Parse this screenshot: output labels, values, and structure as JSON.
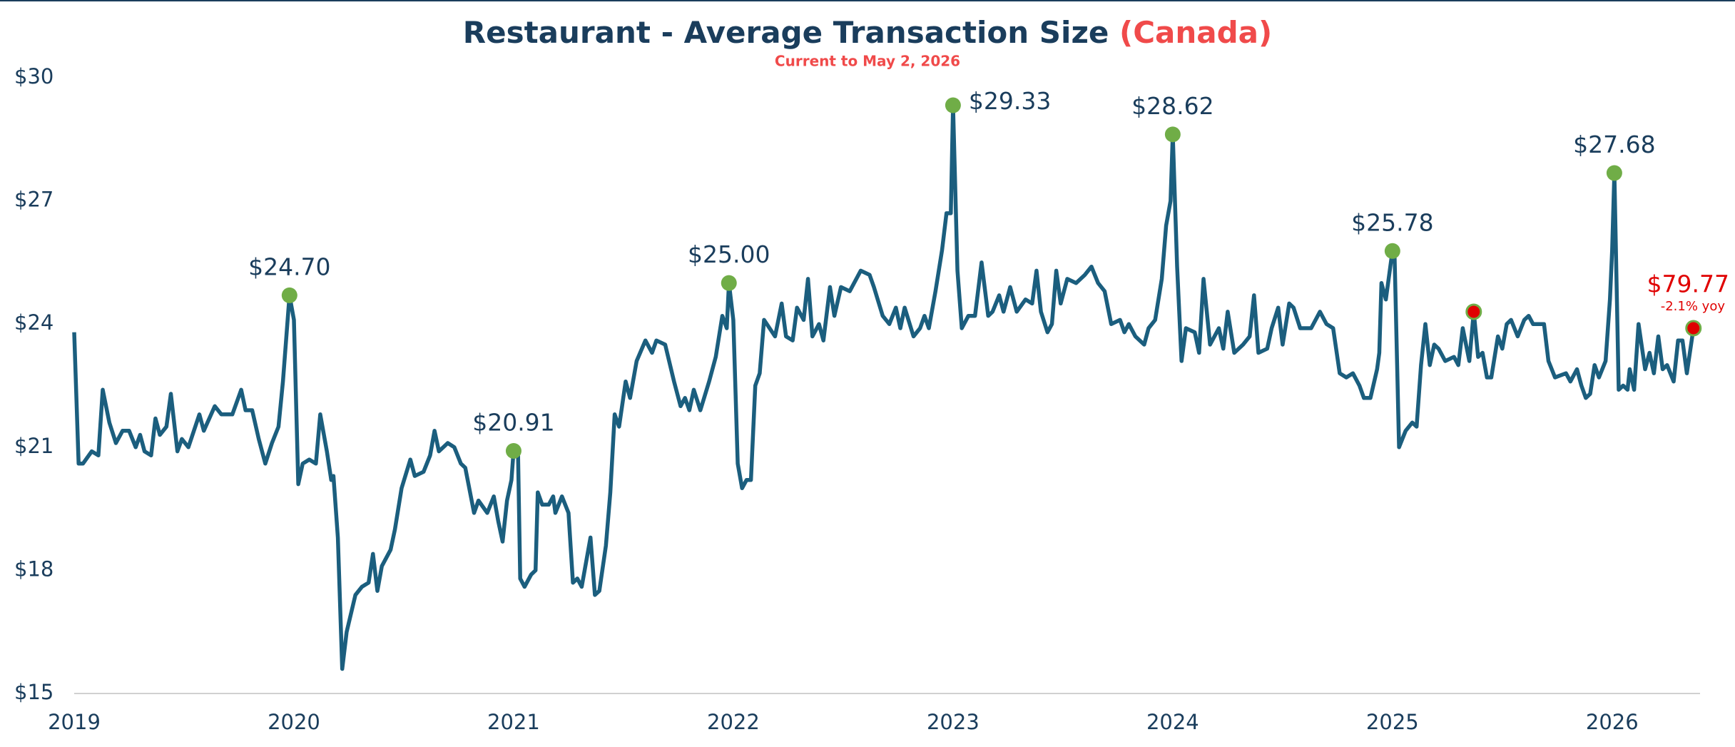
{
  "chart_data": {
    "type": "line",
    "title": "Restaurant - Average Transaction Size",
    "title_highlight": "(Canada)",
    "subtitle": "Current to May 2, 2026",
    "x": [
      2019.0,
      2019.02,
      2019.04,
      2019.08,
      2019.11,
      2019.13,
      2019.16,
      2019.19,
      2019.22,
      2019.25,
      2019.28,
      2019.3,
      2019.32,
      2019.35,
      2019.37,
      2019.39,
      2019.42,
      2019.44,
      2019.47,
      2019.49,
      2019.52,
      2019.57,
      2019.59,
      2019.64,
      2019.67,
      2019.72,
      2019.76,
      2019.78,
      2019.81,
      2019.84,
      2019.87,
      2019.9,
      2019.93,
      2019.95,
      2019.98,
      2020.0,
      2020.02,
      2020.04,
      2020.07,
      2020.1,
      2020.12,
      2020.15,
      2020.17,
      2020.18,
      2020.2,
      2020.22,
      2020.24,
      2020.28,
      2020.31,
      2020.34,
      2020.36,
      2020.38,
      2020.4,
      2020.44,
      2020.46,
      2020.49,
      2020.53,
      2020.55,
      2020.59,
      2020.62,
      2020.64,
      2020.66,
      2020.7,
      2020.73,
      2020.76,
      2020.78,
      2020.82,
      2020.84,
      2020.88,
      2020.91,
      2020.93,
      2020.95,
      2020.97,
      2020.99,
      2021.0,
      2021.02,
      2021.03,
      2021.05,
      2021.08,
      2021.1,
      2021.11,
      2021.13,
      2021.16,
      2021.18,
      2021.19,
      2021.22,
      2021.25,
      2021.27,
      2021.29,
      2021.31,
      2021.35,
      2021.37,
      2021.39,
      2021.42,
      2021.44,
      2021.46,
      2021.48,
      2021.51,
      2021.53,
      2021.56,
      2021.6,
      2021.63,
      2021.65,
      2021.69,
      2021.73,
      2021.76,
      2021.78,
      2021.8,
      2021.82,
      2021.85,
      2021.89,
      2021.92,
      2021.95,
      2021.97,
      2021.98,
      2022.0,
      2022.02,
      2022.04,
      2022.06,
      2022.08,
      2022.1,
      2022.12,
      2022.14,
      2022.19,
      2022.22,
      2022.24,
      2022.27,
      2022.29,
      2022.32,
      2022.34,
      2022.36,
      2022.39,
      2022.41,
      2022.44,
      2022.46,
      2022.49,
      2022.53,
      2022.58,
      2022.62,
      2022.64,
      2022.68,
      2022.71,
      2022.74,
      2022.76,
      2022.78,
      2022.82,
      2022.85,
      2022.87,
      2022.89,
      2022.92,
      2022.95,
      2022.97,
      2022.99,
      2023.0,
      2023.02,
      2023.04,
      2023.07,
      2023.1,
      2023.13,
      2023.16,
      2023.18,
      2023.21,
      2023.23,
      2023.26,
      2023.29,
      2023.33,
      2023.36,
      2023.38,
      2023.4,
      2023.43,
      2023.45,
      2023.47,
      2023.49,
      2023.52,
      2023.56,
      2023.6,
      2023.63,
      2023.66,
      2023.69,
      2023.72,
      2023.76,
      2023.78,
      2023.8,
      2023.83,
      2023.87,
      2023.89,
      2023.92,
      2023.95,
      2023.97,
      2023.99,
      2024.0,
      2024.02,
      2024.04,
      2024.06,
      2024.1,
      2024.12,
      2024.14,
      2024.17,
      2024.21,
      2024.23,
      2024.25,
      2024.28,
      2024.32,
      2024.35,
      2024.37,
      2024.39,
      2024.43,
      2024.45,
      2024.48,
      2024.5,
      2024.53,
      2024.55,
      2024.58,
      2024.63,
      2024.67,
      2024.7,
      2024.73,
      2024.76,
      2024.79,
      2024.82,
      2024.85,
      2024.87,
      2024.9,
      2024.93,
      2024.94,
      2024.95,
      2024.97,
      2025.0,
      2025.01,
      2025.03,
      2025.06,
      2025.09,
      2025.11,
      2025.13,
      2025.15,
      2025.17,
      2025.19,
      2025.21,
      2025.24,
      2025.28,
      2025.3,
      2025.32,
      2025.35,
      2025.37,
      2025.39,
      2025.41,
      2025.43,
      2025.45,
      2025.48,
      2025.5,
      2025.52,
      2025.54,
      2025.57,
      2025.6,
      2025.62,
      2025.64,
      2025.69,
      2025.71,
      2025.74,
      2025.79,
      2025.81,
      2025.84,
      2025.86,
      2025.88,
      2025.9,
      2025.92,
      2025.94,
      2025.97,
      2025.99,
      2026.0,
      2026.01,
      2026.03,
      2026.05,
      2026.07,
      2026.08,
      2026.1,
      2026.12,
      2026.15,
      2026.17,
      2026.19,
      2026.21,
      2026.23,
      2026.25,
      2026.28,
      2026.3,
      2026.32,
      2026.34,
      2026.37
    ],
    "series": [
      {
        "color": "#1b5e7e",
        "values": [
          23.8,
          20.6,
          20.6,
          20.9,
          20.8,
          22.4,
          21.6,
          21.1,
          21.4,
          21.4,
          21.0,
          21.3,
          20.9,
          20.8,
          21.7,
          21.3,
          21.5,
          22.3,
          20.9,
          21.2,
          21.0,
          21.8,
          21.4,
          22.0,
          21.8,
          21.8,
          22.4,
          21.9,
          21.9,
          21.2,
          20.6,
          21.1,
          21.5,
          22.6,
          24.7,
          24.1,
          20.1,
          20.6,
          20.7,
          20.6,
          21.8,
          20.9,
          20.2,
          20.3,
          18.8,
          15.6,
          16.5,
          17.4,
          17.6,
          17.7,
          18.4,
          17.5,
          18.1,
          18.5,
          19.0,
          20.0,
          20.7,
          20.3,
          20.4,
          20.8,
          21.4,
          20.9,
          21.1,
          21.0,
          20.6,
          20.5,
          19.4,
          19.7,
          19.4,
          19.8,
          19.2,
          18.7,
          19.7,
          20.2,
          20.91,
          20.9,
          17.8,
          17.6,
          17.9,
          18.0,
          19.9,
          19.6,
          19.6,
          19.8,
          19.4,
          19.8,
          19.4,
          17.7,
          17.8,
          17.6,
          18.8,
          17.4,
          17.5,
          18.6,
          19.9,
          21.8,
          21.5,
          22.6,
          22.2,
          23.1,
          23.6,
          23.3,
          23.6,
          23.5,
          22.6,
          22.0,
          22.2,
          21.9,
          22.4,
          21.9,
          22.6,
          23.2,
          24.2,
          23.9,
          25.0,
          24.1,
          20.6,
          20.0,
          20.2,
          20.2,
          22.5,
          22.8,
          24.1,
          23.7,
          24.5,
          23.7,
          23.6,
          24.4,
          24.1,
          25.1,
          23.7,
          24.0,
          23.6,
          24.9,
          24.2,
          24.9,
          24.8,
          25.3,
          25.2,
          24.9,
          24.2,
          24.0,
          24.4,
          23.9,
          24.4,
          23.7,
          23.9,
          24.2,
          23.9,
          24.8,
          25.8,
          26.7,
          26.7,
          29.33,
          25.3,
          23.9,
          24.2,
          24.2,
          25.5,
          24.2,
          24.3,
          24.7,
          24.3,
          24.9,
          24.3,
          24.6,
          24.5,
          25.3,
          24.3,
          23.8,
          24.0,
          25.3,
          24.5,
          25.1,
          25.0,
          25.2,
          25.4,
          25.0,
          24.8,
          24.0,
          24.1,
          23.8,
          24.0,
          23.7,
          23.5,
          23.9,
          24.1,
          25.1,
          26.4,
          27.0,
          28.62,
          25.4,
          23.1,
          23.9,
          23.8,
          23.3,
          25.1,
          23.5,
          23.9,
          23.4,
          24.3,
          23.3,
          23.5,
          23.7,
          24.7,
          23.3,
          23.4,
          23.9,
          24.4,
          23.5,
          24.5,
          24.4,
          23.9,
          23.9,
          24.3,
          24.0,
          23.9,
          22.8,
          22.7,
          22.8,
          22.5,
          22.2,
          22.2,
          22.9,
          23.3,
          25.0,
          24.6,
          25.78,
          25.6,
          21.0,
          21.4,
          21.6,
          21.5,
          23.0,
          24.0,
          23.0,
          23.5,
          23.4,
          23.1,
          23.2,
          23.0,
          23.9,
          23.1,
          24.3,
          23.2,
          23.3,
          22.7,
          22.7,
          23.7,
          23.4,
          24.0,
          24.1,
          23.7,
          24.1,
          24.2,
          24.0,
          24.0,
          23.1,
          22.7,
          22.8,
          22.6,
          22.9,
          22.5,
          22.2,
          22.3,
          23.0,
          22.7,
          23.1,
          24.6,
          25.8,
          27.68,
          22.4,
          22.5,
          22.4,
          22.9,
          22.4,
          24.0,
          22.9,
          23.3,
          22.8,
          23.7,
          22.9,
          23.0,
          22.6,
          23.6,
          23.6,
          22.8,
          23.9
        ]
      }
    ],
    "peaks": {
      "color": "#70ad47",
      "x": [
        2019.98,
        2021.0,
        2021.98,
        2023.0,
        2024.0,
        2025.0,
        2026.01
      ],
      "values": [
        24.7,
        20.91,
        25.0,
        29.33,
        28.62,
        25.78,
        27.68
      ],
      "value_labels": [
        "$24.70",
        "$20.91",
        "$25.00",
        "$29.33",
        "$28.62",
        "$25.78",
        "$27.68"
      ]
    },
    "markers": {
      "color": "#e00000",
      "x": [
        2025.37,
        2026.37
      ],
      "values": [
        24.3,
        23.9
      ]
    },
    "annotation": {
      "text": "$79.77",
      "subtext": "-2.1% yoy"
    },
    "xlim": [
      2019,
      2026.4
    ],
    "xticks": [
      2019,
      2020,
      2021,
      2022,
      2023,
      2024,
      2025,
      2026
    ],
    "ylim": [
      15,
      30
    ],
    "yticks": [
      {
        "value": 15,
        "label": "$15"
      },
      {
        "value": 18,
        "label": "$18"
      },
      {
        "value": 21,
        "label": "$21"
      },
      {
        "value": 24,
        "label": "$24"
      },
      {
        "value": 27,
        "label": "$27"
      },
      {
        "value": 30,
        "label": "$30"
      }
    ],
    "grid": false
  }
}
